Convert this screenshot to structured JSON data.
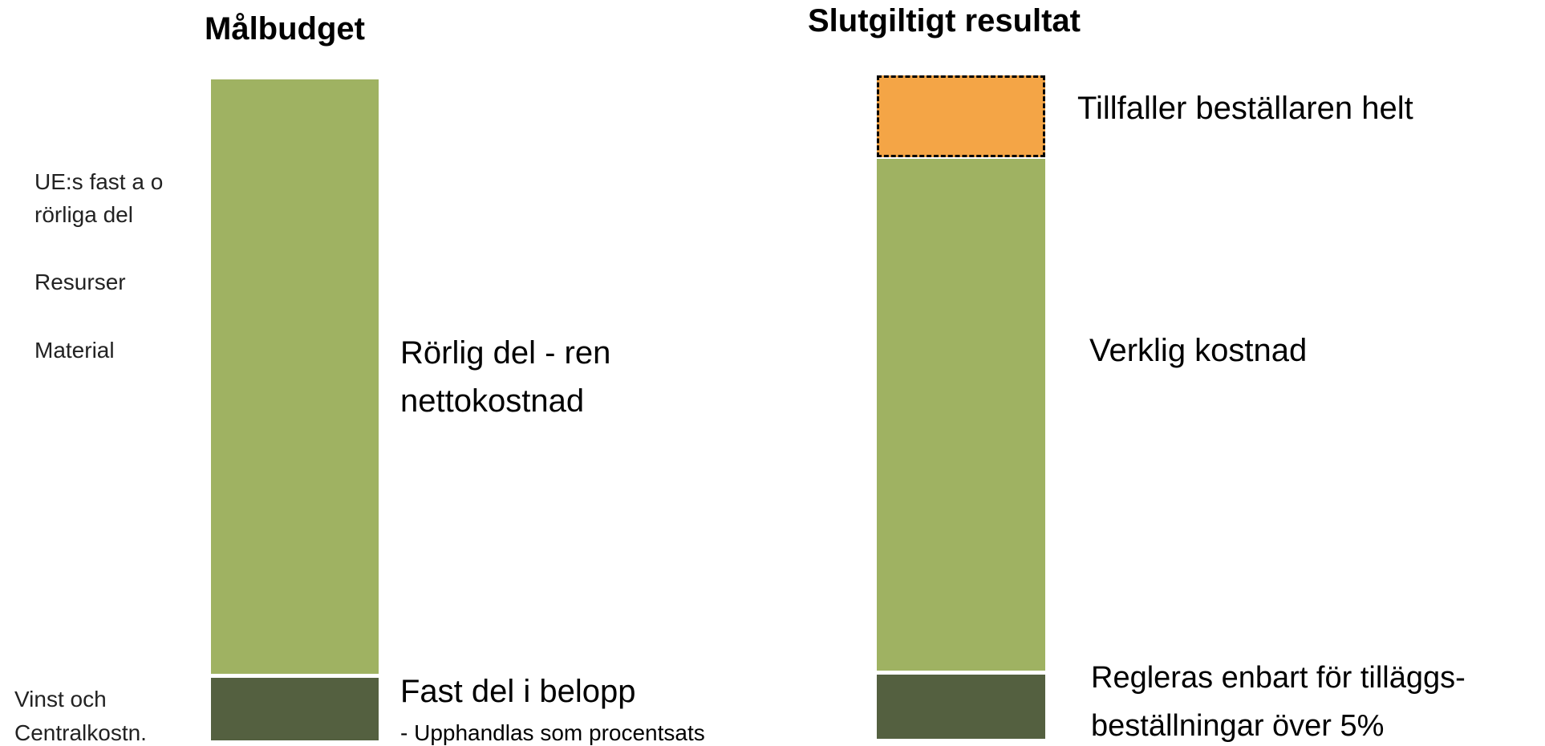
{
  "left": {
    "title": "Målbudget",
    "side_labels": {
      "ue": [
        "UE:s fast a o",
        "rörliga del"
      ],
      "resurser": "Resurser",
      "material": "Material",
      "vinst": [
        "Vinst och",
        "Centralkostn."
      ]
    },
    "variable_label": [
      "Rörlig del - ren",
      "nettokostnad"
    ],
    "fixed_label": "Fast del i belopp",
    "fixed_note": "- Upphandlas som procentsats"
  },
  "right": {
    "title": "Slutgiltigt resultat",
    "surplus_label": "Tillfaller beställaren helt",
    "actual_label": "Verklig kostnad",
    "fixed_label": [
      "Regleras enbart för tilläggs-",
      "beställningar över 5%"
    ]
  }
}
